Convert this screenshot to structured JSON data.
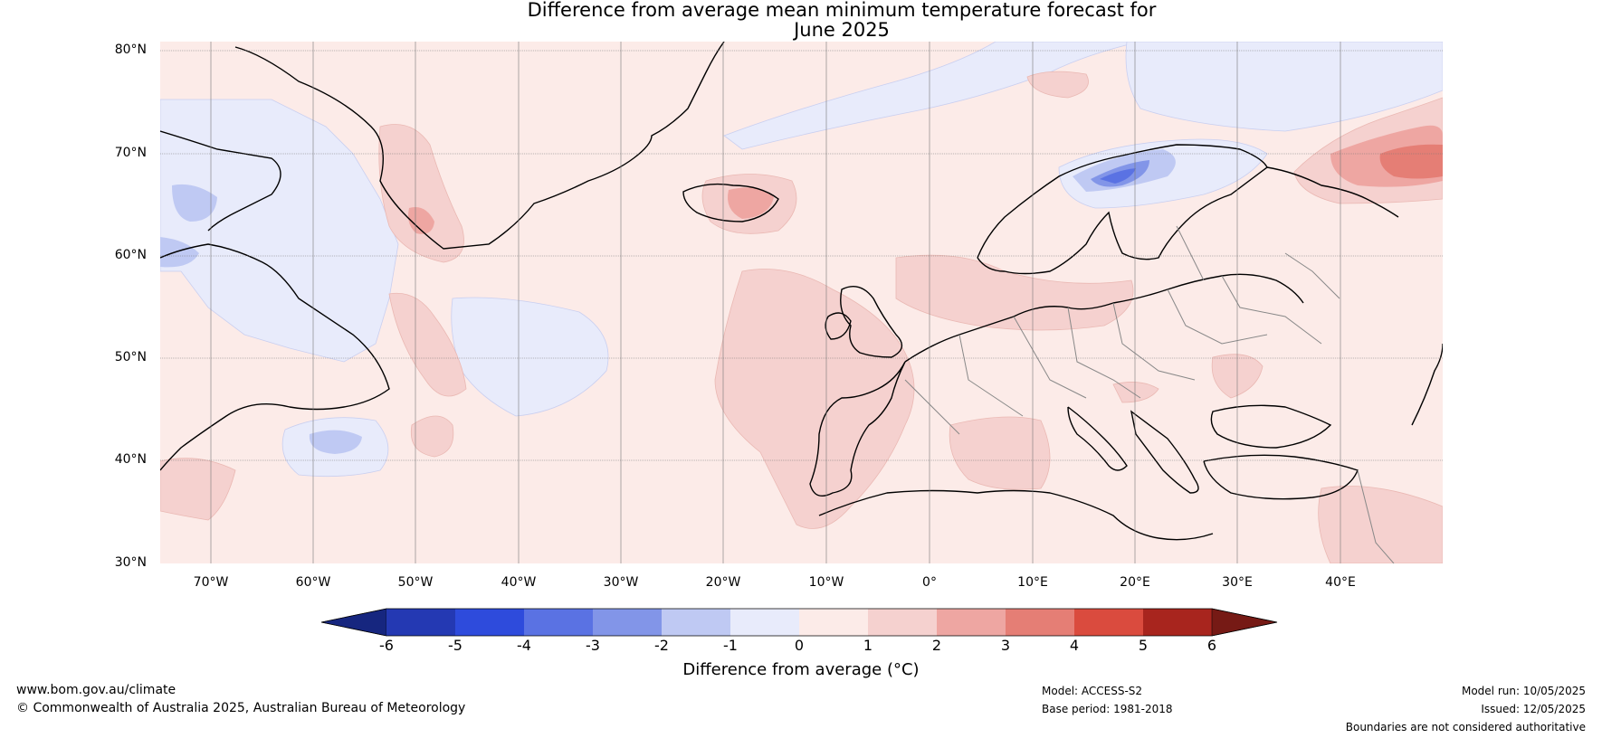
{
  "title": {
    "line1": "Difference from average mean minimum temperature forecast for",
    "line2": "June 2025"
  },
  "lat_ticks": [
    "80°N",
    "70°N",
    "60°N",
    "50°N",
    "40°N",
    "30°N"
  ],
  "lon_ticks": [
    "70°W",
    "60°W",
    "50°W",
    "40°W",
    "30°W",
    "20°W",
    "10°W",
    "0°",
    "10°E",
    "20°E",
    "30°E",
    "40°E"
  ],
  "colorbar": {
    "ticks": [
      "-6",
      "-5",
      "-4",
      "-3",
      "-2",
      "-1",
      "0",
      "1",
      "2",
      "3",
      "4",
      "5",
      "6"
    ],
    "colors": [
      "#16267f",
      "#2439b3",
      "#2e4bdc",
      "#5a72e3",
      "#8295e8",
      "#bfc9f3",
      "#e8ebfb",
      "#fcebe8",
      "#f5d1cf",
      "#eea6a2",
      "#e57e75",
      "#da4b3e",
      "#a8251e",
      "#761a15"
    ],
    "label": "Difference from average (°C)"
  },
  "footer": {
    "url": "www.bom.gov.au/climate",
    "copyright": "© Commonwealth of Australia 2025, Australian Bureau of Meteorology",
    "model": "Model: ACCESS-S2",
    "base_period": "Base period: 1981-2018",
    "model_run": "Model run: 10/05/2025",
    "issued": "Issued: 12/05/2025",
    "disclaimer": "Boundaries are not considered authoritative"
  }
}
